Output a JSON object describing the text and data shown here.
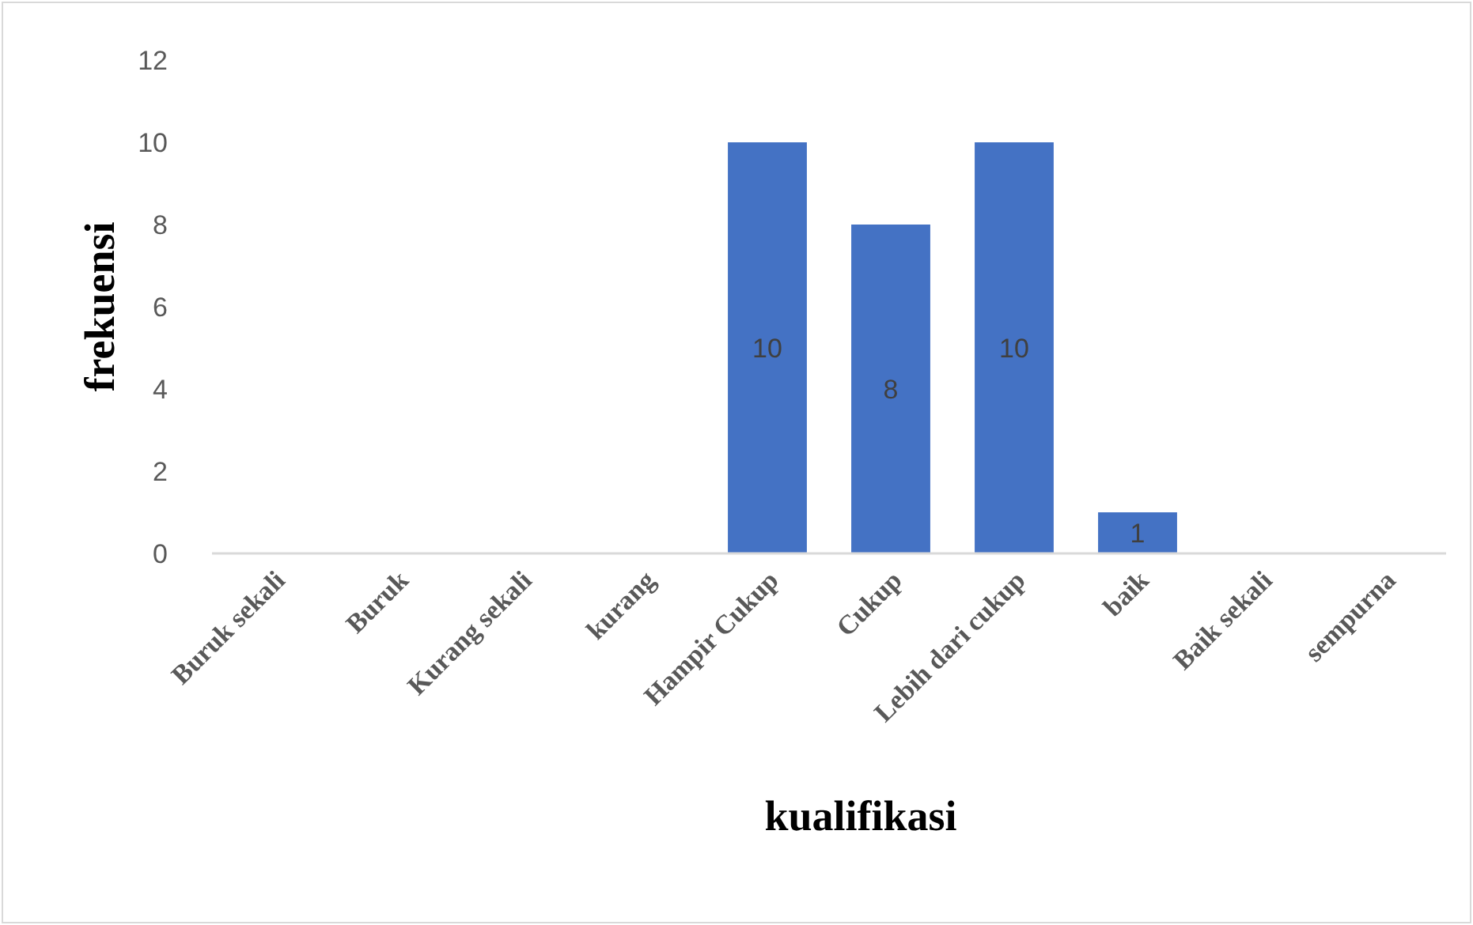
{
  "chart_data": {
    "type": "bar",
    "xlabel": "kualifikasi",
    "ylabel": "frekuensi",
    "categories": [
      "Buruk sekali",
      "Buruk",
      "Kurang sekali",
      "kurang",
      "Hampir Cukup",
      "Cukup",
      "Lebih dari cukup",
      "baik",
      "Baik sekali",
      "sempurna"
    ],
    "values": [
      0,
      0,
      0,
      0,
      10,
      8,
      10,
      1,
      0,
      0
    ],
    "value_labels": [
      null,
      null,
      null,
      null,
      "10",
      "8",
      "10",
      "1",
      null,
      null
    ],
    "color": "#4472c4",
    "ylim": [
      0,
      12
    ],
    "yticks": [
      0,
      2,
      4,
      6,
      8,
      10,
      12
    ],
    "grid": false
  }
}
